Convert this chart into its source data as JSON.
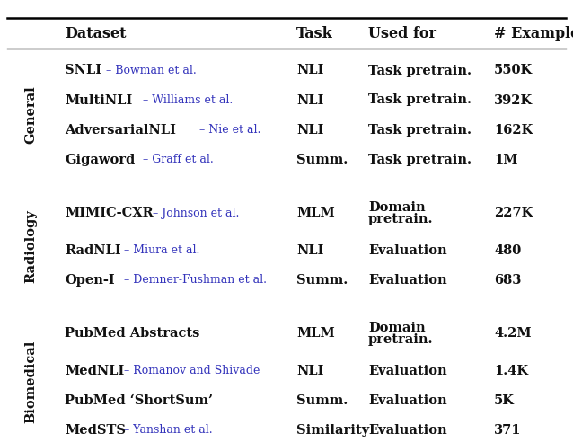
{
  "header": [
    "Dataset",
    "Task",
    "Used for",
    "# Examples"
  ],
  "groups": [
    {
      "label": "General",
      "rows": [
        {
          "dataset_main": "SNLI",
          "dataset_ref": " – Bowman et al.",
          "task": "NLI",
          "used_for_lines": [
            "Task pretrain."
          ],
          "examples": "550K"
        },
        {
          "dataset_main": "MultiNLI",
          "dataset_ref": " – Williams et al.",
          "task": "NLI",
          "used_for_lines": [
            "Task pretrain."
          ],
          "examples": "392K"
        },
        {
          "dataset_main": "AdversarialNLI",
          "dataset_ref": " – Nie et al.",
          "task": "NLI",
          "used_for_lines": [
            "Task pretrain."
          ],
          "examples": "162K"
        },
        {
          "dataset_main": "Gigaword",
          "dataset_ref": " – Graff et al.",
          "task": "Summ.",
          "used_for_lines": [
            "Task pretrain."
          ],
          "examples": "1M"
        }
      ]
    },
    {
      "label": "Radiology",
      "rows": [
        {
          "dataset_main": "MIMIC-CXR",
          "dataset_ref": " – Johnson et al.",
          "task": "MLM",
          "used_for_lines": [
            "Domain",
            "pretrain."
          ],
          "examples": "227K"
        },
        {
          "dataset_main": "RadNLI",
          "dataset_ref": " – Miura et al.",
          "task": "NLI",
          "used_for_lines": [
            "Evaluation"
          ],
          "examples": "480"
        },
        {
          "dataset_main": "Open-I",
          "dataset_ref": " – Demner-Fushman et al.",
          "task": "Summ.",
          "used_for_lines": [
            "Evaluation"
          ],
          "examples": "683"
        }
      ]
    },
    {
      "label": "Biomedical",
      "rows": [
        {
          "dataset_main": "PubMed Abstracts",
          "dataset_ref": "",
          "task": "MLM",
          "used_for_lines": [
            "Domain",
            "pretrain."
          ],
          "examples": "4.2M"
        },
        {
          "dataset_main": "MedNLI",
          "dataset_ref": " – Romanov and Shivade",
          "task": "NLI",
          "used_for_lines": [
            "Evaluation"
          ],
          "examples": "1.4K"
        },
        {
          "dataset_main": "PubMed ‘ShortSum’",
          "dataset_ref": "",
          "task": "Summ.",
          "used_for_lines": [
            "Evaluation"
          ],
          "examples": "5K"
        },
        {
          "dataset_main": "MedSTS",
          "dataset_ref": " – Yanshan et al.",
          "task": "Similarity",
          "used_for_lines": [
            "Evaluation"
          ],
          "examples": "371"
        }
      ]
    }
  ],
  "blue_color": "#3333bb",
  "black_color": "#111111",
  "bg_color": "#ffffff",
  "header_fontsize": 11.5,
  "body_fontsize": 10.5,
  "ref_fontsize": 9.0,
  "group_label_fontsize": 10.5
}
